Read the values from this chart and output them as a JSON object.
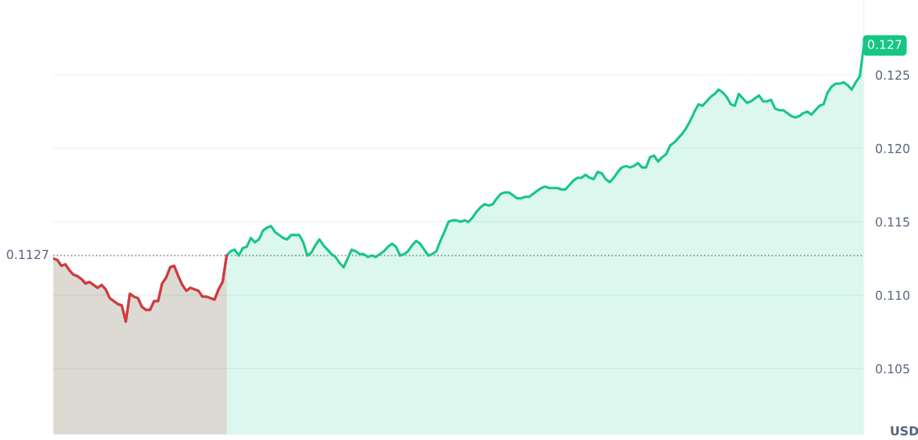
{
  "chart_data": {
    "type": "area",
    "ylabel": "USD",
    "categories": [
      null,
      null,
      null,
      null,
      null,
      null,
      null,
      null,
      null,
      null,
      null,
      null,
      null,
      null,
      null,
      null,
      null,
      null,
      null,
      null,
      null,
      null,
      null,
      null,
      null,
      null,
      null,
      null,
      null,
      null,
      null,
      null,
      null,
      null,
      null,
      null,
      null,
      null,
      null,
      null,
      null,
      null,
      null,
      null,
      null,
      null,
      null,
      null,
      null,
      null,
      null,
      null,
      null,
      null,
      null,
      null,
      null,
      null,
      null,
      null,
      null,
      null,
      null,
      null,
      null,
      null,
      null,
      null,
      null,
      null,
      null,
      null,
      null,
      null,
      null,
      null,
      null,
      null,
      null,
      null,
      null,
      null,
      null,
      null,
      null,
      null,
      null,
      null,
      null,
      null,
      null,
      null,
      null,
      null,
      null,
      null,
      null,
      null,
      null,
      null,
      null,
      null,
      null,
      null,
      null,
      null,
      null,
      null,
      null,
      null,
      null,
      null,
      null,
      null,
      null,
      null,
      null,
      null,
      null,
      null,
      null,
      null,
      null,
      null,
      null,
      null,
      null,
      null,
      null,
      null,
      null,
      null,
      null,
      null,
      null,
      null,
      null,
      null,
      null,
      null,
      null,
      null,
      null,
      null,
      null,
      null,
      null,
      null,
      null,
      null,
      null,
      null,
      null,
      null,
      null,
      null,
      null,
      null,
      null,
      null,
      null,
      null,
      null,
      null,
      null,
      null,
      null,
      null,
      null,
      null,
      null,
      null,
      null,
      null,
      null,
      null,
      null,
      null,
      null,
      null,
      null,
      null,
      null,
      null,
      null,
      null,
      null,
      null,
      null,
      null,
      null,
      null,
      null,
      null,
      null,
      null,
      null,
      null,
      null,
      null,
      null,
      null
    ],
    "series": [
      {
        "color": "#16c784",
        "values": [
          0.1125,
          0.1124,
          0.112,
          0.1121,
          0.1117,
          0.1114,
          0.1113,
          0.1111,
          0.1108,
          0.1109,
          0.1107,
          0.1105,
          0.1107,
          0.1104,
          0.1098,
          0.1096,
          0.1094,
          0.1093,
          0.1082,
          0.1101,
          0.1099,
          0.1098,
          0.1092,
          0.109,
          0.109,
          0.1096,
          0.1096,
          0.1108,
          0.1112,
          0.1119,
          0.112,
          0.1113,
          0.1107,
          0.1103,
          0.1105,
          0.1104,
          0.1103,
          0.1099,
          0.1099,
          0.1098,
          0.1097,
          0.1104,
          0.1109,
          0.1127,
          0.113,
          0.1131,
          0.1127,
          0.1132,
          0.1133,
          0.1139,
          0.1136,
          0.1138,
          0.1144,
          0.1146,
          0.1147,
          0.1143,
          0.1141,
          0.1139,
          0.1138,
          0.1141,
          0.1141,
          0.1141,
          0.1136,
          0.1127,
          0.1129,
          0.1134,
          0.1138,
          0.1134,
          0.1131,
          0.1128,
          0.1126,
          0.1122,
          0.1119,
          0.1125,
          0.1131,
          0.113,
          0.1128,
          0.1128,
          0.1126,
          0.1127,
          0.1126,
          0.1128,
          0.113,
          0.1133,
          0.1135,
          0.1133,
          0.1127,
          0.1128,
          0.113,
          0.1134,
          0.1137,
          0.1135,
          0.1131,
          0.1127,
          0.1128,
          0.113,
          0.1137,
          0.1143,
          0.115,
          0.1151,
          0.1151,
          0.115,
          0.1151,
          0.115,
          0.1153,
          0.1157,
          0.116,
          0.1162,
          0.1161,
          0.1162,
          0.1166,
          0.1169,
          0.117,
          0.117,
          0.1168,
          0.1166,
          0.1166,
          0.1167,
          0.1167,
          0.1169,
          0.1171,
          0.1173,
          0.1174,
          0.1173,
          0.1173,
          0.1173,
          0.1172,
          0.1172,
          0.1175,
          0.1178,
          0.118,
          0.118,
          0.1182,
          0.118,
          0.1179,
          0.1184,
          0.1183,
          0.1179,
          0.1177,
          0.118,
          0.1184,
          0.1187,
          0.1188,
          0.1187,
          0.1188,
          0.119,
          0.1187,
          0.1187,
          0.1194,
          0.1195,
          0.1191,
          0.1194,
          0.1196,
          0.1202,
          0.1204,
          0.1207,
          0.121,
          0.1214,
          0.1219,
          0.1225,
          0.123,
          0.1229,
          0.1232,
          0.1235,
          0.1237,
          0.124,
          0.1238,
          0.1235,
          0.123,
          0.1229,
          0.1237,
          0.1234,
          0.1231,
          0.1232,
          0.1234,
          0.1236,
          0.1232,
          0.1232,
          0.1233,
          0.1227,
          0.1226,
          0.1226,
          0.1224,
          0.1222,
          0.1221,
          0.1222,
          0.1224,
          0.1225,
          0.1223,
          0.1226,
          0.1229,
          0.123,
          0.1238,
          0.1242,
          0.1244,
          0.1244,
          0.1245,
          0.1243,
          0.124,
          0.1245,
          0.1249,
          0.127
        ]
      },
      {
        "color": "#e0343f",
        "values": [
          0.1125,
          0.1124,
          0.112,
          0.1121,
          0.1117,
          0.1114,
          0.1113,
          0.1111,
          0.1108,
          0.1109,
          0.1107,
          0.1105,
          0.1107,
          0.1104,
          0.1098,
          0.1096,
          0.1094,
          0.1093,
          0.1082,
          0.1101,
          0.1099,
          0.1098,
          0.1092,
          0.109,
          0.109,
          0.1096,
          0.1096,
          0.1108,
          0.1112,
          0.1119,
          0.112,
          0.1113,
          0.1107,
          0.1103,
          0.1105,
          0.1104,
          0.1103,
          0.1099,
          0.1099,
          0.1098,
          0.1097,
          0.1104,
          0.1109,
          0.1127,
          null,
          null,
          null,
          null,
          null,
          null,
          null,
          null,
          null,
          null,
          null,
          null,
          null,
          null,
          null,
          null,
          null,
          null,
          null,
          null,
          null,
          null,
          null,
          null,
          null,
          null,
          null,
          null,
          null,
          null,
          null,
          null,
          null,
          null,
          null,
          null,
          null,
          null,
          null,
          null,
          null,
          null,
          null,
          null,
          null,
          null,
          null,
          null,
          null,
          null,
          null,
          null,
          null,
          null,
          null,
          null,
          null,
          null,
          null,
          null,
          null,
          null,
          null,
          null,
          null,
          null,
          null,
          null,
          null,
          null,
          null,
          null,
          null,
          null,
          null,
          null,
          null,
          null,
          null,
          null,
          null,
          null,
          null,
          null,
          null,
          null,
          null,
          null,
          null,
          null,
          null,
          null,
          null,
          null,
          null,
          null,
          null,
          null,
          null,
          null,
          null,
          null,
          null,
          null,
          null,
          null,
          null,
          null,
          null,
          null,
          null,
          null,
          null,
          null,
          null,
          null,
          null,
          null,
          null,
          null,
          null,
          null,
          null,
          null,
          null,
          null,
          null,
          null,
          null,
          null,
          null,
          null,
          null,
          null,
          null,
          null,
          null,
          null,
          null,
          null,
          null,
          null,
          null,
          null,
          null,
          null,
          null,
          null,
          null,
          null,
          null,
          null,
          null,
          null,
          null,
          null,
          null,
          null
        ]
      }
    ],
    "ylim": [
      0.1005,
      0.1301
    ],
    "yticks": [
      {
        "value": 0.105,
        "label": "0.105"
      },
      {
        "value": 0.11,
        "label": "0.110"
      },
      {
        "value": 0.115,
        "label": "0.115"
      },
      {
        "value": 0.12,
        "label": "0.120"
      },
      {
        "value": 0.125,
        "label": "0.125"
      }
    ],
    "ref_lines": [
      {
        "axis": "y",
        "value": 0.1127,
        "label": "0.1127",
        "color": "#8a8f98",
        "line_style": "dotted"
      }
    ],
    "annotations": [
      "0.127"
    ],
    "grid": "y",
    "legend": false
  }
}
